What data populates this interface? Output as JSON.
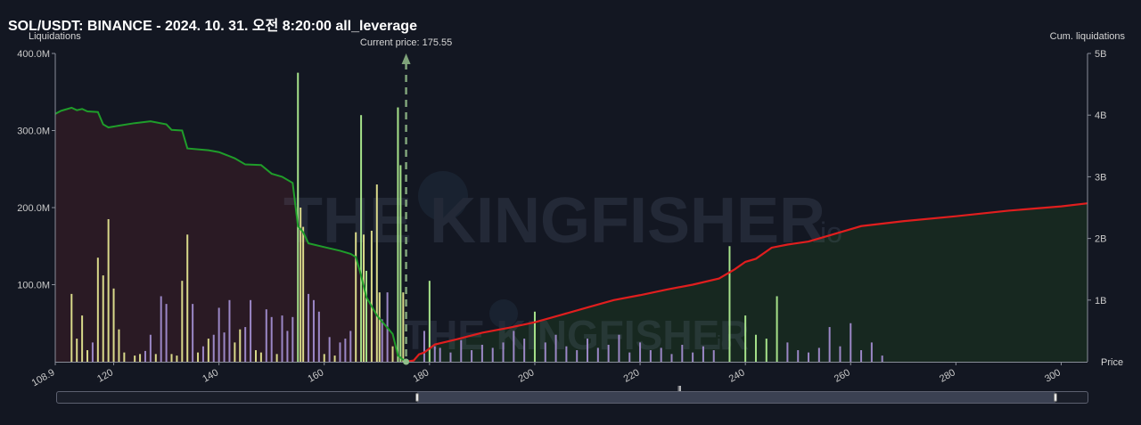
{
  "title": "SOL/USDT: BINANCE - 2024. 10. 31. 오전 8:20:00 all_leverage",
  "watermark": "THE KINGFISHER",
  "watermark_suffix": "io",
  "scroller_grip": "III",
  "colors": {
    "background": "#131722",
    "long_area": "#2a1a24",
    "short_area": "#172820",
    "long_line": "#1f9d2a",
    "short_line": "#e01e1e",
    "bar_yellow": "#d9d98a",
    "bar_green": "#a6e28a",
    "bar_purple": "#9b87c6",
    "current_price_line": "#7fa37a"
  },
  "chart_data": {
    "type": "bar",
    "x_label": "Price",
    "y_left_label": "Liquidations",
    "y_right_label": "Cum. liquidations",
    "x_range": [
      108.9,
      305
    ],
    "x_ticks": [
      "108.9",
      "120",
      "140",
      "160",
      "180",
      "200",
      "220",
      "240",
      "260",
      "280",
      "300"
    ],
    "y_left_range": [
      0,
      400
    ],
    "y_left_ticks": [
      "400.0M",
      "300.0M",
      "200.0M",
      "100.0M"
    ],
    "y_right_range": [
      0,
      5
    ],
    "y_right_ticks": [
      "5B",
      "4B",
      "3B",
      "2B",
      "1B"
    ],
    "current_price": 175.55,
    "current_price_label": "Current price: 175.55",
    "long_cumulative_B": [
      [
        108.9,
        4.02
      ],
      [
        110,
        4.07
      ],
      [
        112,
        4.12
      ],
      [
        113,
        4.08
      ],
      [
        114,
        4.1
      ],
      [
        115,
        4.06
      ],
      [
        117,
        4.05
      ],
      [
        118,
        3.85
      ],
      [
        119,
        3.8
      ],
      [
        121,
        3.83
      ],
      [
        124,
        3.87
      ],
      [
        127,
        3.9
      ],
      [
        130,
        3.85
      ],
      [
        131,
        3.76
      ],
      [
        133,
        3.75
      ],
      [
        134,
        3.46
      ],
      [
        138,
        3.43
      ],
      [
        140,
        3.4
      ],
      [
        143,
        3.3
      ],
      [
        145,
        3.2
      ],
      [
        148,
        3.19
      ],
      [
        150,
        3.05
      ],
      [
        152,
        3.0
      ],
      [
        154,
        2.9
      ],
      [
        155,
        2.2
      ],
      [
        156,
        2.1
      ],
      [
        157,
        1.92
      ],
      [
        158,
        1.9
      ],
      [
        160,
        1.86
      ],
      [
        163,
        1.8
      ],
      [
        165,
        1.75
      ],
      [
        166,
        1.7
      ],
      [
        167,
        1.4
      ],
      [
        168,
        1.05
      ],
      [
        170,
        0.75
      ],
      [
        172,
        0.55
      ],
      [
        173,
        0.45
      ],
      [
        174,
        0.1
      ],
      [
        175.5,
        0.0
      ]
    ],
    "short_cumulative_B": [
      [
        175.55,
        0.0
      ],
      [
        177,
        0.02
      ],
      [
        178,
        0.12
      ],
      [
        179,
        0.15
      ],
      [
        181,
        0.28
      ],
      [
        185,
        0.36
      ],
      [
        190,
        0.47
      ],
      [
        195,
        0.55
      ],
      [
        200,
        0.64
      ],
      [
        205,
        0.76
      ],
      [
        210,
        0.88
      ],
      [
        215,
        1.0
      ],
      [
        220,
        1.08
      ],
      [
        225,
        1.17
      ],
      [
        230,
        1.25
      ],
      [
        235,
        1.35
      ],
      [
        238,
        1.5
      ],
      [
        240,
        1.62
      ],
      [
        242,
        1.67
      ],
      [
        245,
        1.85
      ],
      [
        248,
        1.9
      ],
      [
        252,
        1.95
      ],
      [
        256,
        2.05
      ],
      [
        258,
        2.1
      ],
      [
        262,
        2.2
      ],
      [
        270,
        2.28
      ],
      [
        280,
        2.36
      ],
      [
        290,
        2.45
      ],
      [
        300,
        2.52
      ],
      [
        305,
        2.57
      ]
    ],
    "bars_M": [
      {
        "x": 112,
        "v": 88,
        "c": "yellow"
      },
      {
        "x": 113,
        "v": 30,
        "c": "yellow"
      },
      {
        "x": 114,
        "v": 60,
        "c": "yellow"
      },
      {
        "x": 115,
        "v": 15,
        "c": "yellow"
      },
      {
        "x": 116,
        "v": 25,
        "c": "purple"
      },
      {
        "x": 117,
        "v": 135,
        "c": "yellow"
      },
      {
        "x": 118,
        "v": 112,
        "c": "yellow"
      },
      {
        "x": 119,
        "v": 185,
        "c": "yellow"
      },
      {
        "x": 120,
        "v": 95,
        "c": "yellow"
      },
      {
        "x": 121,
        "v": 42,
        "c": "yellow"
      },
      {
        "x": 122,
        "v": 12,
        "c": "yellow"
      },
      {
        "x": 124,
        "v": 8,
        "c": "yellow"
      },
      {
        "x": 125,
        "v": 10,
        "c": "yellow"
      },
      {
        "x": 126,
        "v": 14,
        "c": "purple"
      },
      {
        "x": 127,
        "v": 35,
        "c": "purple"
      },
      {
        "x": 128,
        "v": 10,
        "c": "yellow"
      },
      {
        "x": 129,
        "v": 85,
        "c": "purple"
      },
      {
        "x": 130,
        "v": 75,
        "c": "purple"
      },
      {
        "x": 131,
        "v": 10,
        "c": "yellow"
      },
      {
        "x": 132,
        "v": 8,
        "c": "yellow"
      },
      {
        "x": 133,
        "v": 105,
        "c": "yellow"
      },
      {
        "x": 134,
        "v": 165,
        "c": "yellow"
      },
      {
        "x": 135,
        "v": 75,
        "c": "purple"
      },
      {
        "x": 136,
        "v": 12,
        "c": "yellow"
      },
      {
        "x": 137,
        "v": 20,
        "c": "purple"
      },
      {
        "x": 138,
        "v": 30,
        "c": "yellow"
      },
      {
        "x": 139,
        "v": 35,
        "c": "purple"
      },
      {
        "x": 140,
        "v": 70,
        "c": "purple"
      },
      {
        "x": 141,
        "v": 38,
        "c": "purple"
      },
      {
        "x": 142,
        "v": 80,
        "c": "purple"
      },
      {
        "x": 143,
        "v": 25,
        "c": "yellow"
      },
      {
        "x": 144,
        "v": 42,
        "c": "yellow"
      },
      {
        "x": 145,
        "v": 45,
        "c": "purple"
      },
      {
        "x": 146,
        "v": 80,
        "c": "purple"
      },
      {
        "x": 147,
        "v": 15,
        "c": "yellow"
      },
      {
        "x": 148,
        "v": 12,
        "c": "yellow"
      },
      {
        "x": 149,
        "v": 68,
        "c": "purple"
      },
      {
        "x": 150,
        "v": 58,
        "c": "purple"
      },
      {
        "x": 151,
        "v": 10,
        "c": "yellow"
      },
      {
        "x": 152,
        "v": 60,
        "c": "purple"
      },
      {
        "x": 153,
        "v": 40,
        "c": "purple"
      },
      {
        "x": 154,
        "v": 58,
        "c": "purple"
      },
      {
        "x": 155,
        "v": 375,
        "c": "green"
      },
      {
        "x": 155.5,
        "v": 200,
        "c": "yellow"
      },
      {
        "x": 156,
        "v": 175,
        "c": "yellow"
      },
      {
        "x": 157,
        "v": 88,
        "c": "purple"
      },
      {
        "x": 158,
        "v": 80,
        "c": "purple"
      },
      {
        "x": 159,
        "v": 65,
        "c": "purple"
      },
      {
        "x": 160,
        "v": 10,
        "c": "yellow"
      },
      {
        "x": 161,
        "v": 32,
        "c": "purple"
      },
      {
        "x": 162,
        "v": 8,
        "c": "yellow"
      },
      {
        "x": 163,
        "v": 25,
        "c": "purple"
      },
      {
        "x": 164,
        "v": 30,
        "c": "purple"
      },
      {
        "x": 165,
        "v": 40,
        "c": "purple"
      },
      {
        "x": 166,
        "v": 168,
        "c": "yellow"
      },
      {
        "x": 167,
        "v": 320,
        "c": "green"
      },
      {
        "x": 167.5,
        "v": 165,
        "c": "yellow"
      },
      {
        "x": 168,
        "v": 118,
        "c": "green"
      },
      {
        "x": 169,
        "v": 170,
        "c": "yellow"
      },
      {
        "x": 170,
        "v": 230,
        "c": "yellow"
      },
      {
        "x": 170.5,
        "v": 90,
        "c": "yellow"
      },
      {
        "x": 171,
        "v": 55,
        "c": "purple"
      },
      {
        "x": 172,
        "v": 90,
        "c": "purple"
      },
      {
        "x": 173,
        "v": 20,
        "c": "yellow"
      },
      {
        "x": 174,
        "v": 330,
        "c": "green"
      },
      {
        "x": 174.5,
        "v": 255,
        "c": "green"
      },
      {
        "x": 175,
        "v": 90,
        "c": "yellow"
      },
      {
        "x": 179,
        "v": 40,
        "c": "purple"
      },
      {
        "x": 180,
        "v": 105,
        "c": "green"
      },
      {
        "x": 181,
        "v": 20,
        "c": "purple"
      },
      {
        "x": 182,
        "v": 18,
        "c": "purple"
      },
      {
        "x": 184,
        "v": 12,
        "c": "purple"
      },
      {
        "x": 186,
        "v": 28,
        "c": "purple"
      },
      {
        "x": 188,
        "v": 15,
        "c": "purple"
      },
      {
        "x": 190,
        "v": 22,
        "c": "purple"
      },
      {
        "x": 192,
        "v": 18,
        "c": "purple"
      },
      {
        "x": 194,
        "v": 25,
        "c": "purple"
      },
      {
        "x": 196,
        "v": 40,
        "c": "purple"
      },
      {
        "x": 198,
        "v": 30,
        "c": "purple"
      },
      {
        "x": 200,
        "v": 65,
        "c": "green"
      },
      {
        "x": 202,
        "v": 25,
        "c": "purple"
      },
      {
        "x": 204,
        "v": 35,
        "c": "purple"
      },
      {
        "x": 206,
        "v": 20,
        "c": "purple"
      },
      {
        "x": 208,
        "v": 15,
        "c": "purple"
      },
      {
        "x": 210,
        "v": 30,
        "c": "purple"
      },
      {
        "x": 212,
        "v": 18,
        "c": "purple"
      },
      {
        "x": 214,
        "v": 22,
        "c": "purple"
      },
      {
        "x": 216,
        "v": 35,
        "c": "purple"
      },
      {
        "x": 218,
        "v": 12,
        "c": "purple"
      },
      {
        "x": 220,
        "v": 25,
        "c": "purple"
      },
      {
        "x": 222,
        "v": 15,
        "c": "purple"
      },
      {
        "x": 224,
        "v": 18,
        "c": "purple"
      },
      {
        "x": 226,
        "v": 10,
        "c": "purple"
      },
      {
        "x": 228,
        "v": 22,
        "c": "purple"
      },
      {
        "x": 230,
        "v": 12,
        "c": "purple"
      },
      {
        "x": 232,
        "v": 20,
        "c": "purple"
      },
      {
        "x": 234,
        "v": 15,
        "c": "purple"
      },
      {
        "x": 237,
        "v": 150,
        "c": "green"
      },
      {
        "x": 240,
        "v": 60,
        "c": "green"
      },
      {
        "x": 242,
        "v": 35,
        "c": "green"
      },
      {
        "x": 244,
        "v": 30,
        "c": "green"
      },
      {
        "x": 246,
        "v": 85,
        "c": "green"
      },
      {
        "x": 248,
        "v": 25,
        "c": "purple"
      },
      {
        "x": 250,
        "v": 15,
        "c": "purple"
      },
      {
        "x": 252,
        "v": 12,
        "c": "purple"
      },
      {
        "x": 254,
        "v": 18,
        "c": "purple"
      },
      {
        "x": 256,
        "v": 45,
        "c": "purple"
      },
      {
        "x": 258,
        "v": 20,
        "c": "purple"
      },
      {
        "x": 260,
        "v": 50,
        "c": "purple"
      },
      {
        "x": 262,
        "v": 15,
        "c": "purple"
      },
      {
        "x": 264,
        "v": 25,
        "c": "purple"
      },
      {
        "x": 266,
        "v": 8,
        "c": "purple"
      }
    ]
  }
}
